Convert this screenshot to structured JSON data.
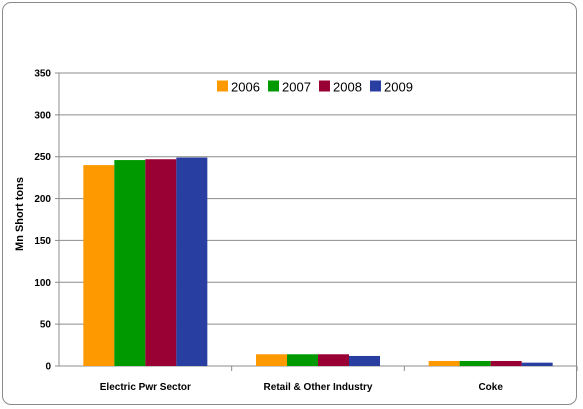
{
  "chart_data": {
    "type": "bar",
    "categories": [
      "Electric Pwr Sector",
      "Retail & Other Industry",
      "Coke"
    ],
    "series": [
      {
        "name": "2006",
        "values": [
          240,
          14,
          6
        ],
        "color": "#FF9900"
      },
      {
        "name": "2007",
        "values": [
          246,
          14,
          6
        ],
        "color": "#009900"
      },
      {
        "name": "2008",
        "values": [
          247,
          14,
          6
        ],
        "color": "#990033"
      },
      {
        "name": "2009",
        "values": [
          249,
          12,
          4
        ],
        "color": "#283EA1"
      }
    ],
    "ylabel": "Mn Short tons",
    "ylim": [
      0,
      350
    ],
    "yticks": [
      0,
      50,
      100,
      150,
      200,
      250,
      300,
      350
    ],
    "grid": true,
    "legend_position": "top-center"
  }
}
